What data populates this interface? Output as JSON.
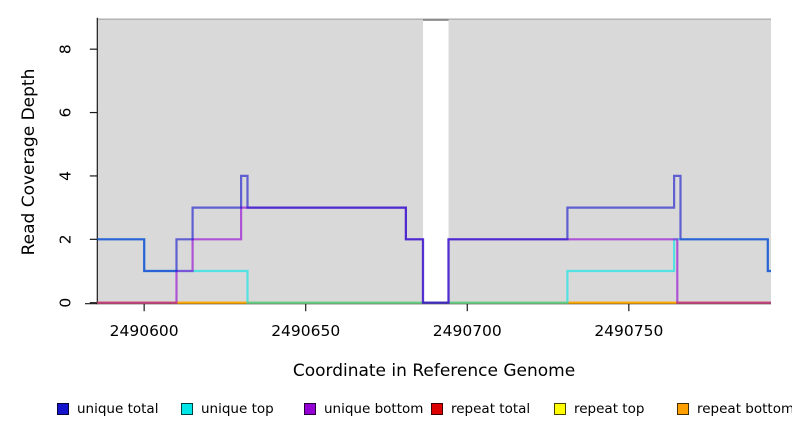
{
  "chart_data": {
    "type": "line",
    "subtype": "step-coverage",
    "title": "",
    "xlabel": "Coordinate in Reference Genome",
    "ylabel": "Read Coverage Depth",
    "xlim": [
      2490585.5,
      2490794
    ],
    "ylim": [
      0,
      8.93
    ],
    "xticks": [
      2490600,
      2490650,
      2490700,
      2490750
    ],
    "yticks": [
      0,
      2,
      4,
      6,
      8
    ],
    "grid": false,
    "legend_position": "bottom",
    "plot_bg": "#D9D9D9",
    "axis_color": "#1A1A1A",
    "top_border_color": "#ADADAD",
    "gap_cap_color": "#8C8C8C",
    "gap_region": [
      2490686.3,
      2490694.2
    ],
    "line_opacity": 0.62,
    "series": [
      {
        "name": "repeat total",
        "color": "#DD0000",
        "values": [
          [
            2490585.5,
            0
          ],
          [
            2490794,
            0
          ]
        ]
      },
      {
        "name": "repeat top",
        "color": "#FFFF00",
        "values": [
          [
            2490585.5,
            0
          ],
          [
            2490794,
            0
          ]
        ]
      },
      {
        "name": "repeat bottom",
        "color": "#FFA000",
        "values": [
          [
            2490585.5,
            0
          ],
          [
            2490794,
            0
          ]
        ]
      },
      {
        "name": "unique top",
        "color": "#00E5E5",
        "values": [
          [
            2490585.5,
            2
          ],
          [
            2490600,
            1
          ],
          [
            2490632,
            0
          ],
          [
            2490731,
            1
          ],
          [
            2490764,
            2
          ],
          [
            2490793,
            1
          ],
          [
            2490794,
            1
          ]
        ]
      },
      {
        "name": "unique bottom",
        "color": "#9400D3",
        "values": [
          [
            2490585.5,
            0
          ],
          [
            2490610,
            1
          ],
          [
            2490615,
            2
          ],
          [
            2490630,
            3
          ],
          [
            2490681,
            2
          ],
          [
            2490686.3,
            0
          ],
          [
            2490694.2,
            2
          ],
          [
            2490765,
            0
          ],
          [
            2490794,
            0
          ]
        ]
      },
      {
        "name": "unique total",
        "color": "#1414CC",
        "values": [
          [
            2490585.5,
            2
          ],
          [
            2490600,
            1
          ],
          [
            2490610,
            2
          ],
          [
            2490615,
            3
          ],
          [
            2490630,
            4
          ],
          [
            2490632,
            3
          ],
          [
            2490681,
            2
          ],
          [
            2490686.3,
            0
          ],
          [
            2490694.2,
            2
          ],
          [
            2490731,
            3
          ],
          [
            2490764,
            4
          ],
          [
            2490766,
            2
          ],
          [
            2490793,
            1
          ],
          [
            2490794,
            1
          ]
        ]
      }
    ],
    "legend": [
      {
        "label": "unique total",
        "color": "#1414CC"
      },
      {
        "label": "unique top",
        "color": "#00E5E5"
      },
      {
        "label": "unique bottom",
        "color": "#9400D3"
      },
      {
        "label": "repeat total",
        "color": "#DD0000"
      },
      {
        "label": "repeat top",
        "color": "#FFFF00"
      },
      {
        "label": "repeat bottom",
        "color": "#FFA000"
      }
    ]
  }
}
